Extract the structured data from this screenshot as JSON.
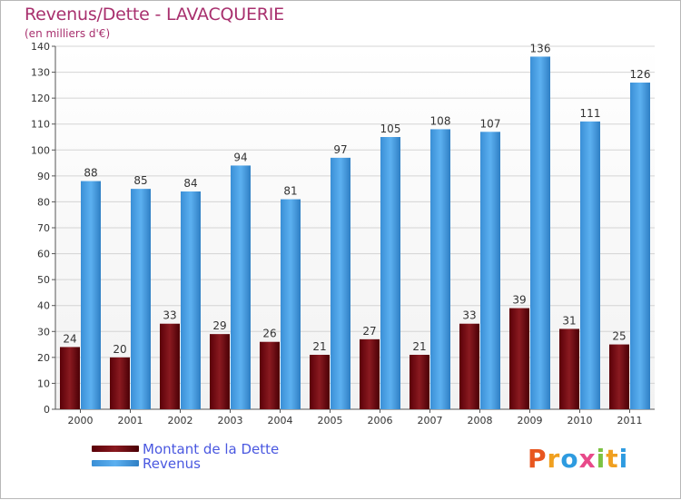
{
  "header": {
    "title": "Revenus/Dette - LAVACQUERIE",
    "subtitle": "(en milliers d'€)"
  },
  "chart_data": {
    "type": "bar",
    "title": "Revenus/Dette - LAVACQUERIE",
    "subtitle": "(en milliers d'€)",
    "categories": [
      "2000",
      "2001",
      "2002",
      "2003",
      "2004",
      "2005",
      "2006",
      "2007",
      "2008",
      "2009",
      "2010",
      "2011"
    ],
    "series": [
      {
        "name": "Montant de la Dette",
        "values": [
          24,
          20,
          33,
          29,
          26,
          21,
          27,
          21,
          33,
          39,
          31,
          25
        ],
        "color": "#6e0a0e"
      },
      {
        "name": "Revenus",
        "values": [
          88,
          85,
          84,
          94,
          81,
          97,
          105,
          108,
          107,
          136,
          111,
          126
        ],
        "color": "#4aa3ea"
      }
    ],
    "yticks": [
      "0",
      "10",
      "20",
      "30",
      "40",
      "50",
      "60",
      "70",
      "80",
      "90",
      "100",
      "110",
      "120",
      "130",
      "140"
    ],
    "ylim": [
      0,
      140
    ],
    "grid": true,
    "legend": "bottom-left"
  },
  "legend": {
    "items": [
      {
        "label": "Montant de la Dette",
        "color": "#6e0a0e"
      },
      {
        "label": "Revenus",
        "color": "#4aa3ea"
      }
    ]
  },
  "logo": {
    "letters": [
      "P",
      "r",
      "o",
      "x",
      "i",
      "t",
      "i"
    ],
    "colors": [
      "#e8561f",
      "#f0a020",
      "#2e9be0",
      "#e84a8a",
      "#7cc242",
      "#f0a020",
      "#2e9be0"
    ]
  }
}
